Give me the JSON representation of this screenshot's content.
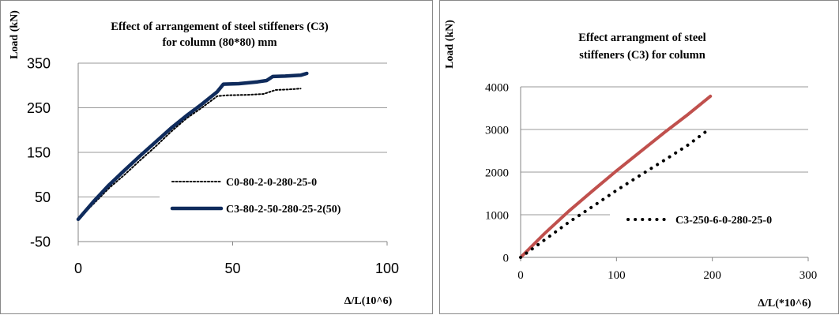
{
  "chart_data": [
    {
      "type": "line",
      "title": "Effect of arrangement of steel stiffeners (C3) for column (80*80) mm",
      "title_lines": [
        "Effect of arrangement of steel stiffeners (C3)",
        "for column (80*80) mm"
      ],
      "xlabel": "Δ/L(10^6)",
      "ylabel": "Load (kN)",
      "xlim": [
        0,
        100
      ],
      "ylim": [
        -50,
        350
      ],
      "x_ticks": [
        "0",
        "50",
        "100"
      ],
      "y_ticks": [
        "-50",
        "50",
        "150",
        "250",
        "350"
      ],
      "grid": "horizontal",
      "legend_position": "right",
      "series": [
        {
          "name": "C0-80-2-0-280-25-0",
          "style": "dotted",
          "color": "#000000",
          "x": [
            0,
            5,
            10,
            15,
            20,
            25,
            30,
            35,
            40,
            45,
            48,
            55,
            60,
            64,
            68,
            72
          ],
          "y": [
            0,
            35,
            70,
            100,
            132,
            163,
            196,
            226,
            250,
            276,
            278,
            279,
            281,
            290,
            291,
            293
          ]
        },
        {
          "name": "C3-80-2-50-280-25-2(50)",
          "style": "solid",
          "color": "#0f2b5c",
          "x": [
            0,
            5,
            10,
            15,
            20,
            25,
            30,
            35,
            40,
            45,
            47,
            52,
            58,
            61,
            63,
            67,
            72,
            74
          ],
          "y": [
            0,
            40,
            77,
            110,
            142,
            173,
            204,
            232,
            258,
            286,
            303,
            304,
            308,
            311,
            320,
            321,
            323,
            327
          ]
        }
      ]
    },
    {
      "type": "line",
      "title": "Effect arrangment of steel stiffeners (C3) for column",
      "title_lines": [
        "Effect arrangment of steel",
        "stiffeners (C3) for column"
      ],
      "xlabel": "Δ/L(*10^6)",
      "ylabel": "Load (kN)",
      "xlim": [
        0,
        300
      ],
      "ylim": [
        0,
        4000
      ],
      "x_ticks": [
        "0",
        "100",
        "200",
        "300"
      ],
      "y_ticks": [
        "0",
        "1000",
        "2000",
        "3000",
        "4000"
      ],
      "grid": "horizontal",
      "legend_position": "right",
      "series": [
        {
          "name": "",
          "style": "solid",
          "color": "#c0504d",
          "x": [
            0,
            25,
            50,
            75,
            100,
            125,
            150,
            175,
            198
          ],
          "y": [
            0,
            560,
            1080,
            1560,
            2030,
            2480,
            2930,
            3360,
            3780
          ]
        },
        {
          "name": "C3-250-6-0-280-25-0",
          "style": "dotted",
          "color": "#000000",
          "x": [
            0,
            25,
            50,
            75,
            100,
            125,
            150,
            175,
            198
          ],
          "y": [
            0,
            410,
            820,
            1190,
            1570,
            1930,
            2280,
            2640,
            3030
          ]
        }
      ]
    }
  ]
}
